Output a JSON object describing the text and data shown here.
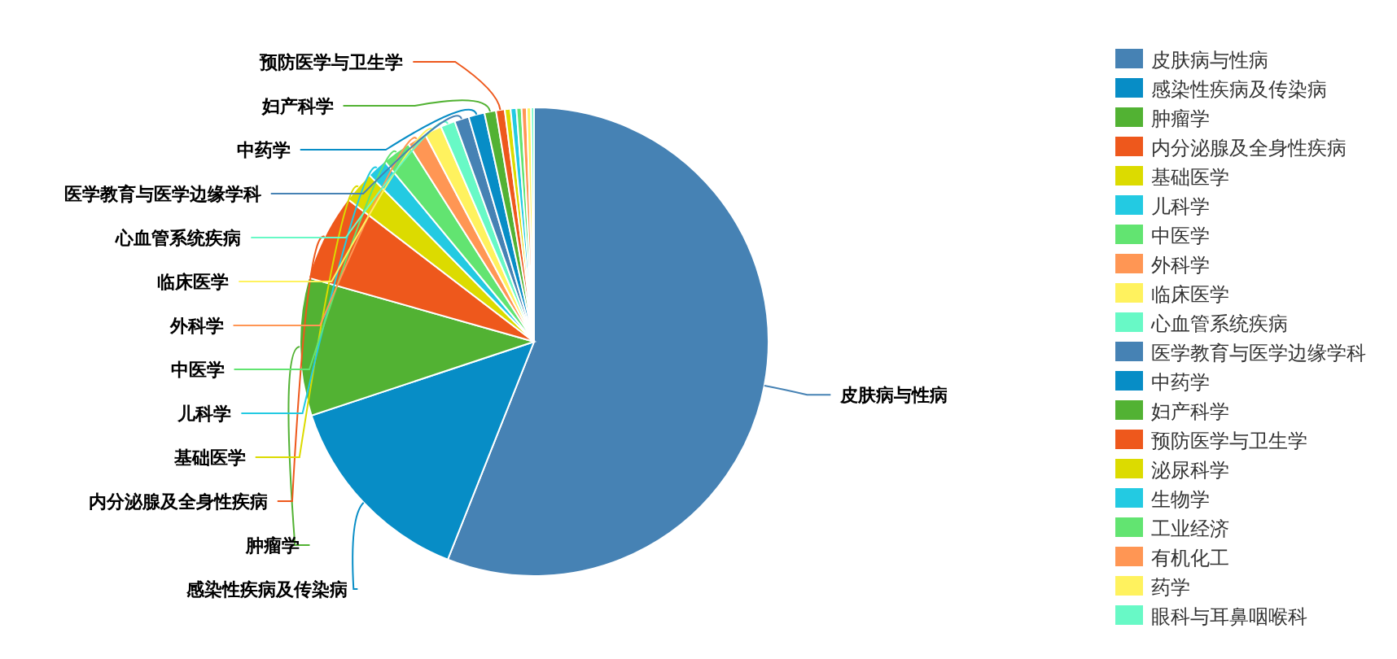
{
  "chart_data": {
    "type": "pie",
    "legend": "right",
    "categories": [
      "皮肤病与性病",
      "感染性疾病及传染病",
      "肿瘤学",
      "内分泌腺及全身性疾病",
      "基础医学",
      "儿科学",
      "中医学",
      "外科学",
      "临床医学",
      "心血管系统疾病",
      "医学教育与医学边缘学科",
      "中药学",
      "妇产科学",
      "预防医学与卫生学",
      "泌尿科学",
      "生物学",
      "工业经济",
      "有机化工",
      "药学",
      "眼科与耳鼻咽喉科"
    ],
    "values": [
      56.0,
      13.9,
      9.5,
      6.0,
      2.2,
      1.4,
      2.0,
      1.3,
      1.2,
      1.0,
      1.0,
      1.1,
      0.8,
      0.6,
      0.4,
      0.4,
      0.35,
      0.35,
      0.3,
      0.2
    ],
    "colors": [
      "#4682b4",
      "#078dc6",
      "#52b233",
      "#ee581c",
      "#dcdb00",
      "#23cae2",
      "#62e471",
      "#ff9654",
      "#fff25e",
      "#68f9c6",
      "#4682b4",
      "#078dc6",
      "#52b233",
      "#ee581c",
      "#dcdb00",
      "#23cae2",
      "#62e471",
      "#ff9654",
      "#fff25e",
      "#68f9c6"
    ]
  }
}
